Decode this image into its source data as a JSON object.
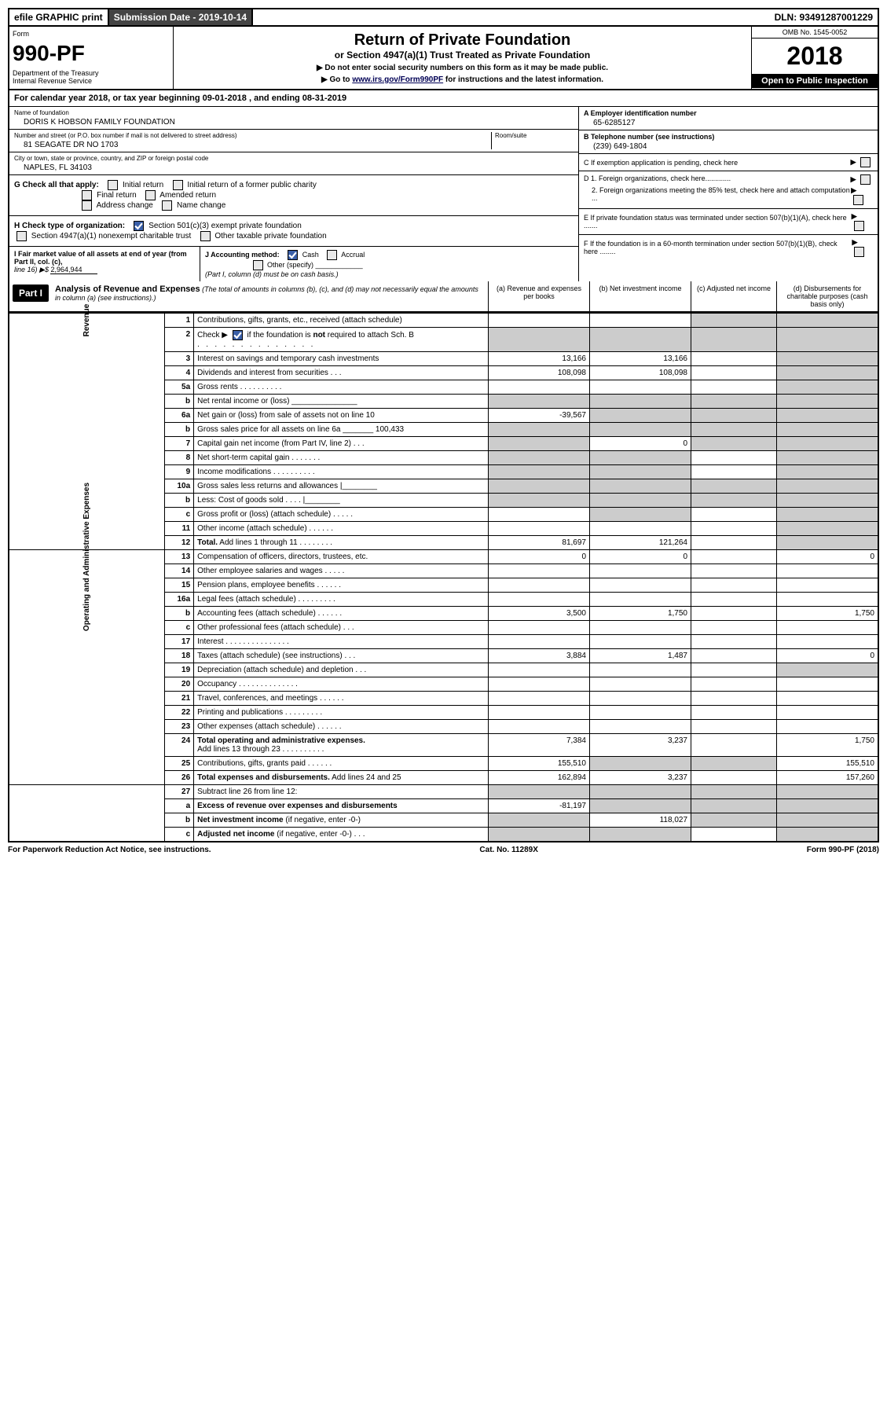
{
  "topbar": {
    "efile": "efile GRAPHIC print",
    "submission": "Submission Date - 2019-10-14",
    "dln": "DLN: 93491287001229"
  },
  "header": {
    "form_label": "Form",
    "form_num": "990-PF",
    "dept": "Department of the Treasury",
    "irs": "Internal Revenue Service",
    "title": "Return of Private Foundation",
    "subtitle": "or Section 4947(a)(1) Trust Treated as Private Foundation",
    "instr1": "▶ Do not enter social security numbers on this form as it may be made public.",
    "instr2_pre": "▶ Go to ",
    "instr2_link": "www.irs.gov/Form990PF",
    "instr2_post": " for instructions and the latest information.",
    "omb": "OMB No. 1545-0052",
    "year": "2018",
    "open": "Open to Public Inspection"
  },
  "cal_year": "For calendar year 2018, or tax year beginning 09-01-2018                      , and ending 08-31-2019",
  "info": {
    "name_label": "Name of foundation",
    "name": "DORIS K HOBSON FAMILY FOUNDATION",
    "addr_label": "Number and street (or P.O. box number if mail is not delivered to street address)",
    "addr": "81 SEAGATE DR NO 1703",
    "room_label": "Room/suite",
    "city_label": "City or town, state or province, country, and ZIP or foreign postal code",
    "city": "NAPLES, FL  34103",
    "ein_label": "A Employer identification number",
    "ein": "65-6285127",
    "phone_label": "B Telephone number (see instructions)",
    "phone": "(239) 649-1804",
    "c": "C If exemption application is pending, check here",
    "d1": "D 1. Foreign organizations, check here.............",
    "d2": "2. Foreign organizations meeting the 85% test, check here and attach computation ...",
    "e": "E  If private foundation status was terminated under section 507(b)(1)(A), check here .......",
    "f": "F  If the foundation is in a 60-month termination under section 507(b)(1)(B), check here ........"
  },
  "g": {
    "label": "G Check all that apply:",
    "initial": "Initial return",
    "initial_former": "Initial return of a former public charity",
    "final": "Final return",
    "amended": "Amended return",
    "addr": "Address change",
    "name": "Name change"
  },
  "h": {
    "label": "H Check type of organization:",
    "s501": "Section 501(c)(3) exempt private foundation",
    "s4947": "Section 4947(a)(1) nonexempt charitable trust",
    "other": "Other taxable private foundation"
  },
  "i": {
    "label": "I Fair market value of all assets at end of year (from Part II, col. (c),",
    "line16": "line 16) ▶$",
    "value": "2,964,944"
  },
  "j": {
    "label": "J Accounting method:",
    "cash": "Cash",
    "accrual": "Accrual",
    "other": "Other (specify)",
    "note": "(Part I, column (d) must be on cash basis.)"
  },
  "part1": {
    "badge": "Part I",
    "title": "Analysis of Revenue and Expenses",
    "note": "(The total of amounts in columns (b), (c), and (d) may not necessarily equal the amounts in column (a) (see instructions).)",
    "col_a": "(a)   Revenue and expenses per books",
    "col_b": "(b)  Net investment income",
    "col_c": "(c)  Adjusted net income",
    "col_d": "(d)  Disbursements for charitable purposes (cash basis only)"
  },
  "side_labels": {
    "revenue": "Revenue",
    "expenses": "Operating and Administrative Expenses"
  },
  "rows": [
    {
      "n": "1",
      "d": "s",
      "a": "",
      "b": "",
      "c": "s"
    },
    {
      "n": "2",
      "d": "s",
      "a": "s",
      "b": "s",
      "c": "s",
      "nobot": true
    },
    {
      "n": "3",
      "d": "s",
      "a": "13,166",
      "b": "13,166",
      "c": ""
    },
    {
      "n": "4",
      "d": "s",
      "a": "108,098",
      "b": "108,098",
      "c": ""
    },
    {
      "n": "5a",
      "d": "s",
      "a": "",
      "b": "",
      "c": ""
    },
    {
      "n": "b",
      "d": "s",
      "a": "s",
      "b": "s",
      "c": "s"
    },
    {
      "n": "6a",
      "d": "s",
      "a": "-39,567",
      "b": "s",
      "c": "s"
    },
    {
      "n": "b",
      "d": "s",
      "a": "s",
      "b": "s",
      "c": "s"
    },
    {
      "n": "7",
      "d": "s",
      "a": "s",
      "b": "0",
      "c": "s"
    },
    {
      "n": "8",
      "d": "s",
      "a": "s",
      "b": "s",
      "c": ""
    },
    {
      "n": "9",
      "d": "s",
      "a": "s",
      "b": "s",
      "c": ""
    },
    {
      "n": "10a",
      "d": "s",
      "a": "s",
      "b": "s",
      "c": "s"
    },
    {
      "n": "b",
      "d": "s",
      "a": "s",
      "b": "s",
      "c": "s"
    },
    {
      "n": "c",
      "d": "s",
      "a": "",
      "b": "s",
      "c": ""
    },
    {
      "n": "11",
      "d": "s",
      "a": "",
      "b": "",
      "c": ""
    },
    {
      "n": "12",
      "d": "s",
      "a": "81,697",
      "b": "121,264",
      "c": "",
      "bold": true
    }
  ],
  "exprows": [
    {
      "n": "13",
      "d": "0",
      "a": "0",
      "b": "0",
      "c": ""
    },
    {
      "n": "14",
      "d": "",
      "a": "",
      "b": "",
      "c": ""
    },
    {
      "n": "15",
      "d": "",
      "a": "",
      "b": "",
      "c": ""
    },
    {
      "n": "16a",
      "d": "",
      "a": "",
      "b": "",
      "c": ""
    },
    {
      "n": "b",
      "d": "1,750",
      "a": "3,500",
      "b": "1,750",
      "c": ""
    },
    {
      "n": "c",
      "d": "",
      "a": "",
      "b": "",
      "c": ""
    },
    {
      "n": "17",
      "d": "",
      "a": "",
      "b": "",
      "c": ""
    },
    {
      "n": "18",
      "d": "0",
      "a": "3,884",
      "b": "1,487",
      "c": ""
    },
    {
      "n": "19",
      "d": "s",
      "a": "",
      "b": "",
      "c": ""
    },
    {
      "n": "20",
      "d": "",
      "a": "",
      "b": "",
      "c": ""
    },
    {
      "n": "21",
      "d": "",
      "a": "",
      "b": "",
      "c": ""
    },
    {
      "n": "22",
      "d": "",
      "a": "",
      "b": "",
      "c": ""
    },
    {
      "n": "23",
      "d": "",
      "a": "",
      "b": "",
      "c": ""
    },
    {
      "n": "24",
      "d": "1,750",
      "a": "7,384",
      "b": "3,237",
      "c": "",
      "bold": true
    },
    {
      "n": "25",
      "d": "155,510",
      "a": "155,510",
      "b": "s",
      "c": "s"
    },
    {
      "n": "26",
      "d": "157,260",
      "a": "162,894",
      "b": "3,237",
      "c": "",
      "bold": true
    }
  ],
  "row27": [
    {
      "n": "27",
      "d": "s",
      "a": "s",
      "b": "s",
      "c": "s"
    },
    {
      "n": "a",
      "d": "s",
      "a": "-81,197",
      "b": "s",
      "c": "s",
      "bold": true
    },
    {
      "n": "b",
      "d": "s",
      "a": "s",
      "b": "118,027",
      "c": "s",
      "bold": true
    },
    {
      "n": "c",
      "d": "s",
      "a": "s",
      "b": "s",
      "c": "",
      "bold": true
    }
  ],
  "footer": {
    "left": "For Paperwork Reduction Act Notice, see instructions.",
    "mid": "Cat. No. 11289X",
    "right": "Form 990-PF (2018)"
  }
}
